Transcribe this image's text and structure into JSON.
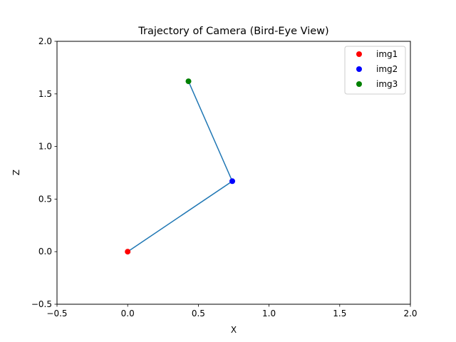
{
  "chart_data": {
    "type": "scatter",
    "title": "Trajectory of Camera (Bird-Eye View)",
    "xlabel": "X",
    "ylabel": "Z",
    "xlim": [
      -0.5,
      2.0
    ],
    "ylim": [
      -0.5,
      2.0
    ],
    "xticks": [
      "−0.5",
      "0.0",
      "0.5",
      "1.0",
      "1.5",
      "2.0"
    ],
    "yticks": [
      "−0.5",
      "0.0",
      "0.5",
      "1.0",
      "1.5",
      "2.0"
    ],
    "xtick_values": [
      -0.5,
      0.0,
      0.5,
      1.0,
      1.5,
      2.0
    ],
    "ytick_values": [
      -0.5,
      0.0,
      0.5,
      1.0,
      1.5,
      2.0
    ],
    "grid": false,
    "legend_position": "top-right",
    "trajectory": {
      "color": "#1f77b4",
      "x": [
        0.0,
        0.74,
        0.43
      ],
      "y": [
        0.0,
        0.67,
        1.62
      ]
    },
    "series": [
      {
        "name": "img1",
        "x": 0.0,
        "y": 0.0,
        "color": "#ff0000"
      },
      {
        "name": "img2",
        "x": 0.74,
        "y": 0.67,
        "color": "#0000ff"
      },
      {
        "name": "img3",
        "x": 0.43,
        "y": 1.62,
        "color": "#008000"
      }
    ]
  }
}
